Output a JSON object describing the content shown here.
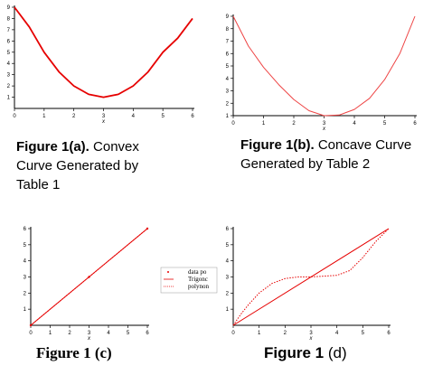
{
  "captions": [
    {
      "bold": "Figure 1(a).",
      "lines": [
        " Convex",
        "Curve Generated by",
        "Table 1"
      ]
    },
    {
      "bold": "Figure 1(b).",
      "lines": [
        " Concave Curve",
        "Generated by Table 2"
      ]
    },
    {
      "bold": "Figure 1 (c)",
      "lines": []
    },
    {
      "bold": "Figure 1",
      "lines": [
        " (d)"
      ]
    }
  ],
  "colors": {
    "curve": "#e60000",
    "curve_light": "#ee4444"
  },
  "chart_data": [
    {
      "type": "line",
      "title": "",
      "xlabel": "x",
      "ylabel": "",
      "xlim": [
        0,
        6
      ],
      "ylim": [
        0,
        9
      ],
      "xticks": [
        "0",
        "1",
        "2",
        "3",
        "4",
        "5",
        "6"
      ],
      "yticks": [
        "1",
        "2",
        "3",
        "4",
        "5",
        "6",
        "7",
        "8",
        "9"
      ],
      "grid": false,
      "series": [
        {
          "x": [
            0,
            0.5,
            1,
            1.5,
            2,
            2.5,
            3,
            3.5,
            4,
            4.5,
            5,
            5.5,
            6
          ],
          "y": [
            9,
            7.25,
            5,
            3.25,
            2,
            1.25,
            1,
            1.25,
            2,
            3.25,
            5,
            6.25,
            8
          ]
        }
      ]
    },
    {
      "type": "line",
      "title": "",
      "xlabel": "x",
      "ylabel": "",
      "xlim": [
        0,
        6
      ],
      "ylim": [
        1,
        9
      ],
      "xticks": [
        "0",
        "1",
        "2",
        "3",
        "4",
        "5",
        "6"
      ],
      "yticks": [
        "1",
        "2",
        "3",
        "4",
        "5",
        "6",
        "7",
        "8",
        "9"
      ],
      "grid": false,
      "series": [
        {
          "x": [
            0,
            0.5,
            1,
            1.5,
            2,
            2.5,
            3,
            3.5,
            4,
            4.5,
            5,
            5.5,
            6
          ],
          "y": [
            9,
            6.6,
            4.9,
            3.5,
            2.3,
            1.4,
            1,
            1.05,
            1.5,
            2.4,
            3.9,
            6.0,
            9
          ]
        }
      ]
    },
    {
      "type": "line",
      "title": "",
      "xlabel": "x",
      "ylabel": "",
      "xlim": [
        0,
        6
      ],
      "ylim": [
        0,
        6
      ],
      "xticks": [
        "0",
        "1",
        "2",
        "3",
        "4",
        "5",
        "6"
      ],
      "yticks": [
        "1",
        "2",
        "3",
        "4",
        "5",
        "6"
      ],
      "grid": false,
      "legend": {
        "placement": "right",
        "entries": [
          "data po",
          "Trigonc",
          "polynon"
        ]
      },
      "series": [
        {
          "name": "data po",
          "kind": "points",
          "x": [
            0,
            3,
            6
          ],
          "y": [
            0,
            3,
            6
          ]
        },
        {
          "name": "Trigonc",
          "kind": "line",
          "x": [
            0,
            6
          ],
          "y": [
            0,
            6
          ]
        },
        {
          "name": "polynon",
          "kind": "dotted",
          "x": [
            0,
            6
          ],
          "y": [
            0,
            6
          ]
        }
      ]
    },
    {
      "type": "line",
      "title": "",
      "xlabel": "x",
      "ylabel": "",
      "xlim": [
        0,
        6
      ],
      "ylim": [
        0,
        6
      ],
      "xticks": [
        "0",
        "1",
        "2",
        "3",
        "4",
        "5",
        "6"
      ],
      "yticks": [
        "1",
        "2",
        "3",
        "4",
        "5",
        "6"
      ],
      "grid": false,
      "series": [
        {
          "kind": "line",
          "x": [
            0,
            6
          ],
          "y": [
            0,
            6
          ]
        },
        {
          "kind": "dotted",
          "x": [
            0,
            0.3,
            0.6,
            1,
            1.5,
            2,
            2.5,
            3,
            3.5,
            4,
            4.5,
            5,
            5.5,
            6
          ],
          "y": [
            0,
            0.7,
            1.3,
            2.0,
            2.6,
            2.9,
            3.0,
            3.0,
            3.05,
            3.1,
            3.4,
            4.2,
            5.2,
            6
          ]
        }
      ]
    }
  ]
}
